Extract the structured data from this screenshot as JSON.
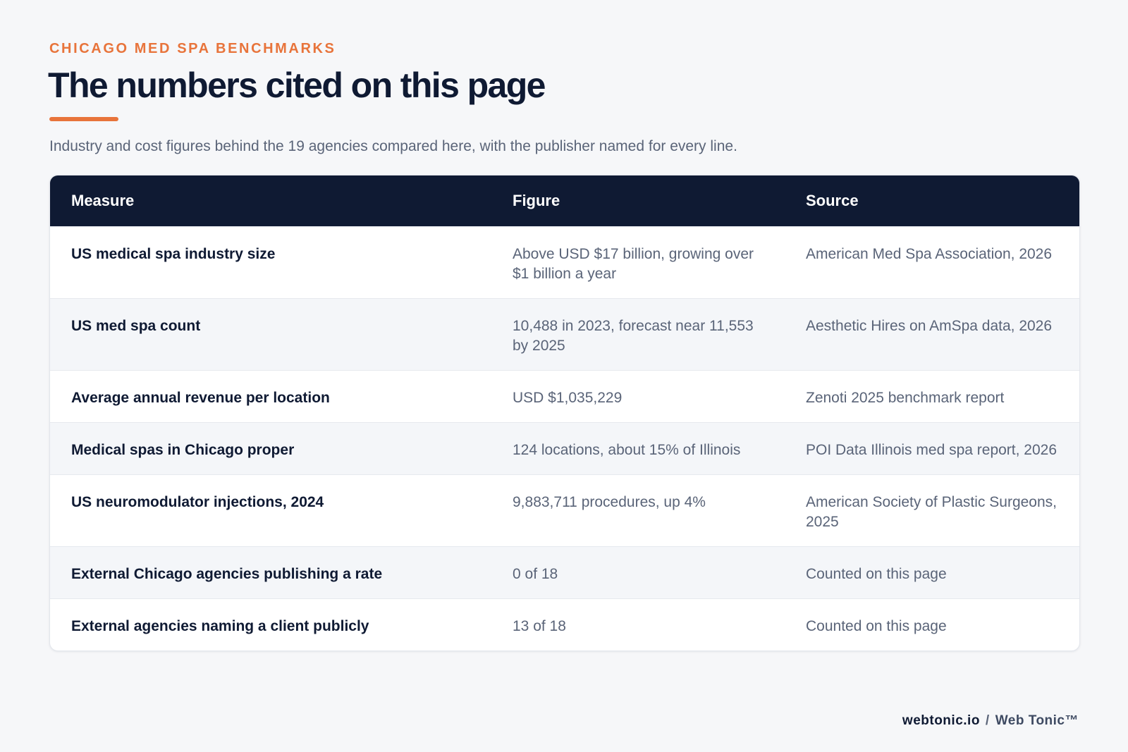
{
  "header": {
    "eyebrow": "CHICAGO MED SPA BENCHMARKS",
    "title": "The numbers cited on this page",
    "subtitle": "Industry and cost figures behind the 19 agencies compared here, with the publisher named for every line."
  },
  "table": {
    "columns": [
      "Measure",
      "Figure",
      "Source"
    ],
    "rows": [
      [
        "US medical spa industry size",
        "Above USD $17 billion, growing over $1 billion a year",
        "American Med Spa Association, 2026"
      ],
      [
        "US med spa count",
        "10,488 in 2023, forecast near 11,553 by 2025",
        "Aesthetic Hires on AmSpa data, 2026"
      ],
      [
        "Average annual revenue per location",
        "USD $1,035,229",
        "Zenoti 2025 benchmark report"
      ],
      [
        "Medical spas in Chicago proper",
        "124 locations, about 15% of Illinois",
        "POI Data Illinois med spa report, 2026"
      ],
      [
        "US neuromodulator injections, 2024",
        "9,883,711 procedures, up 4%",
        "American Society of Plastic Surgeons, 2025"
      ],
      [
        "External Chicago agencies publishing a rate",
        "0 of 18",
        "Counted on this page"
      ],
      [
        "External agencies naming a client publicly",
        "13 of 18",
        "Counted on this page"
      ]
    ]
  },
  "footer": {
    "domain": "webtonic.io",
    "separator": "/",
    "brand": "Web Tonic™"
  }
}
